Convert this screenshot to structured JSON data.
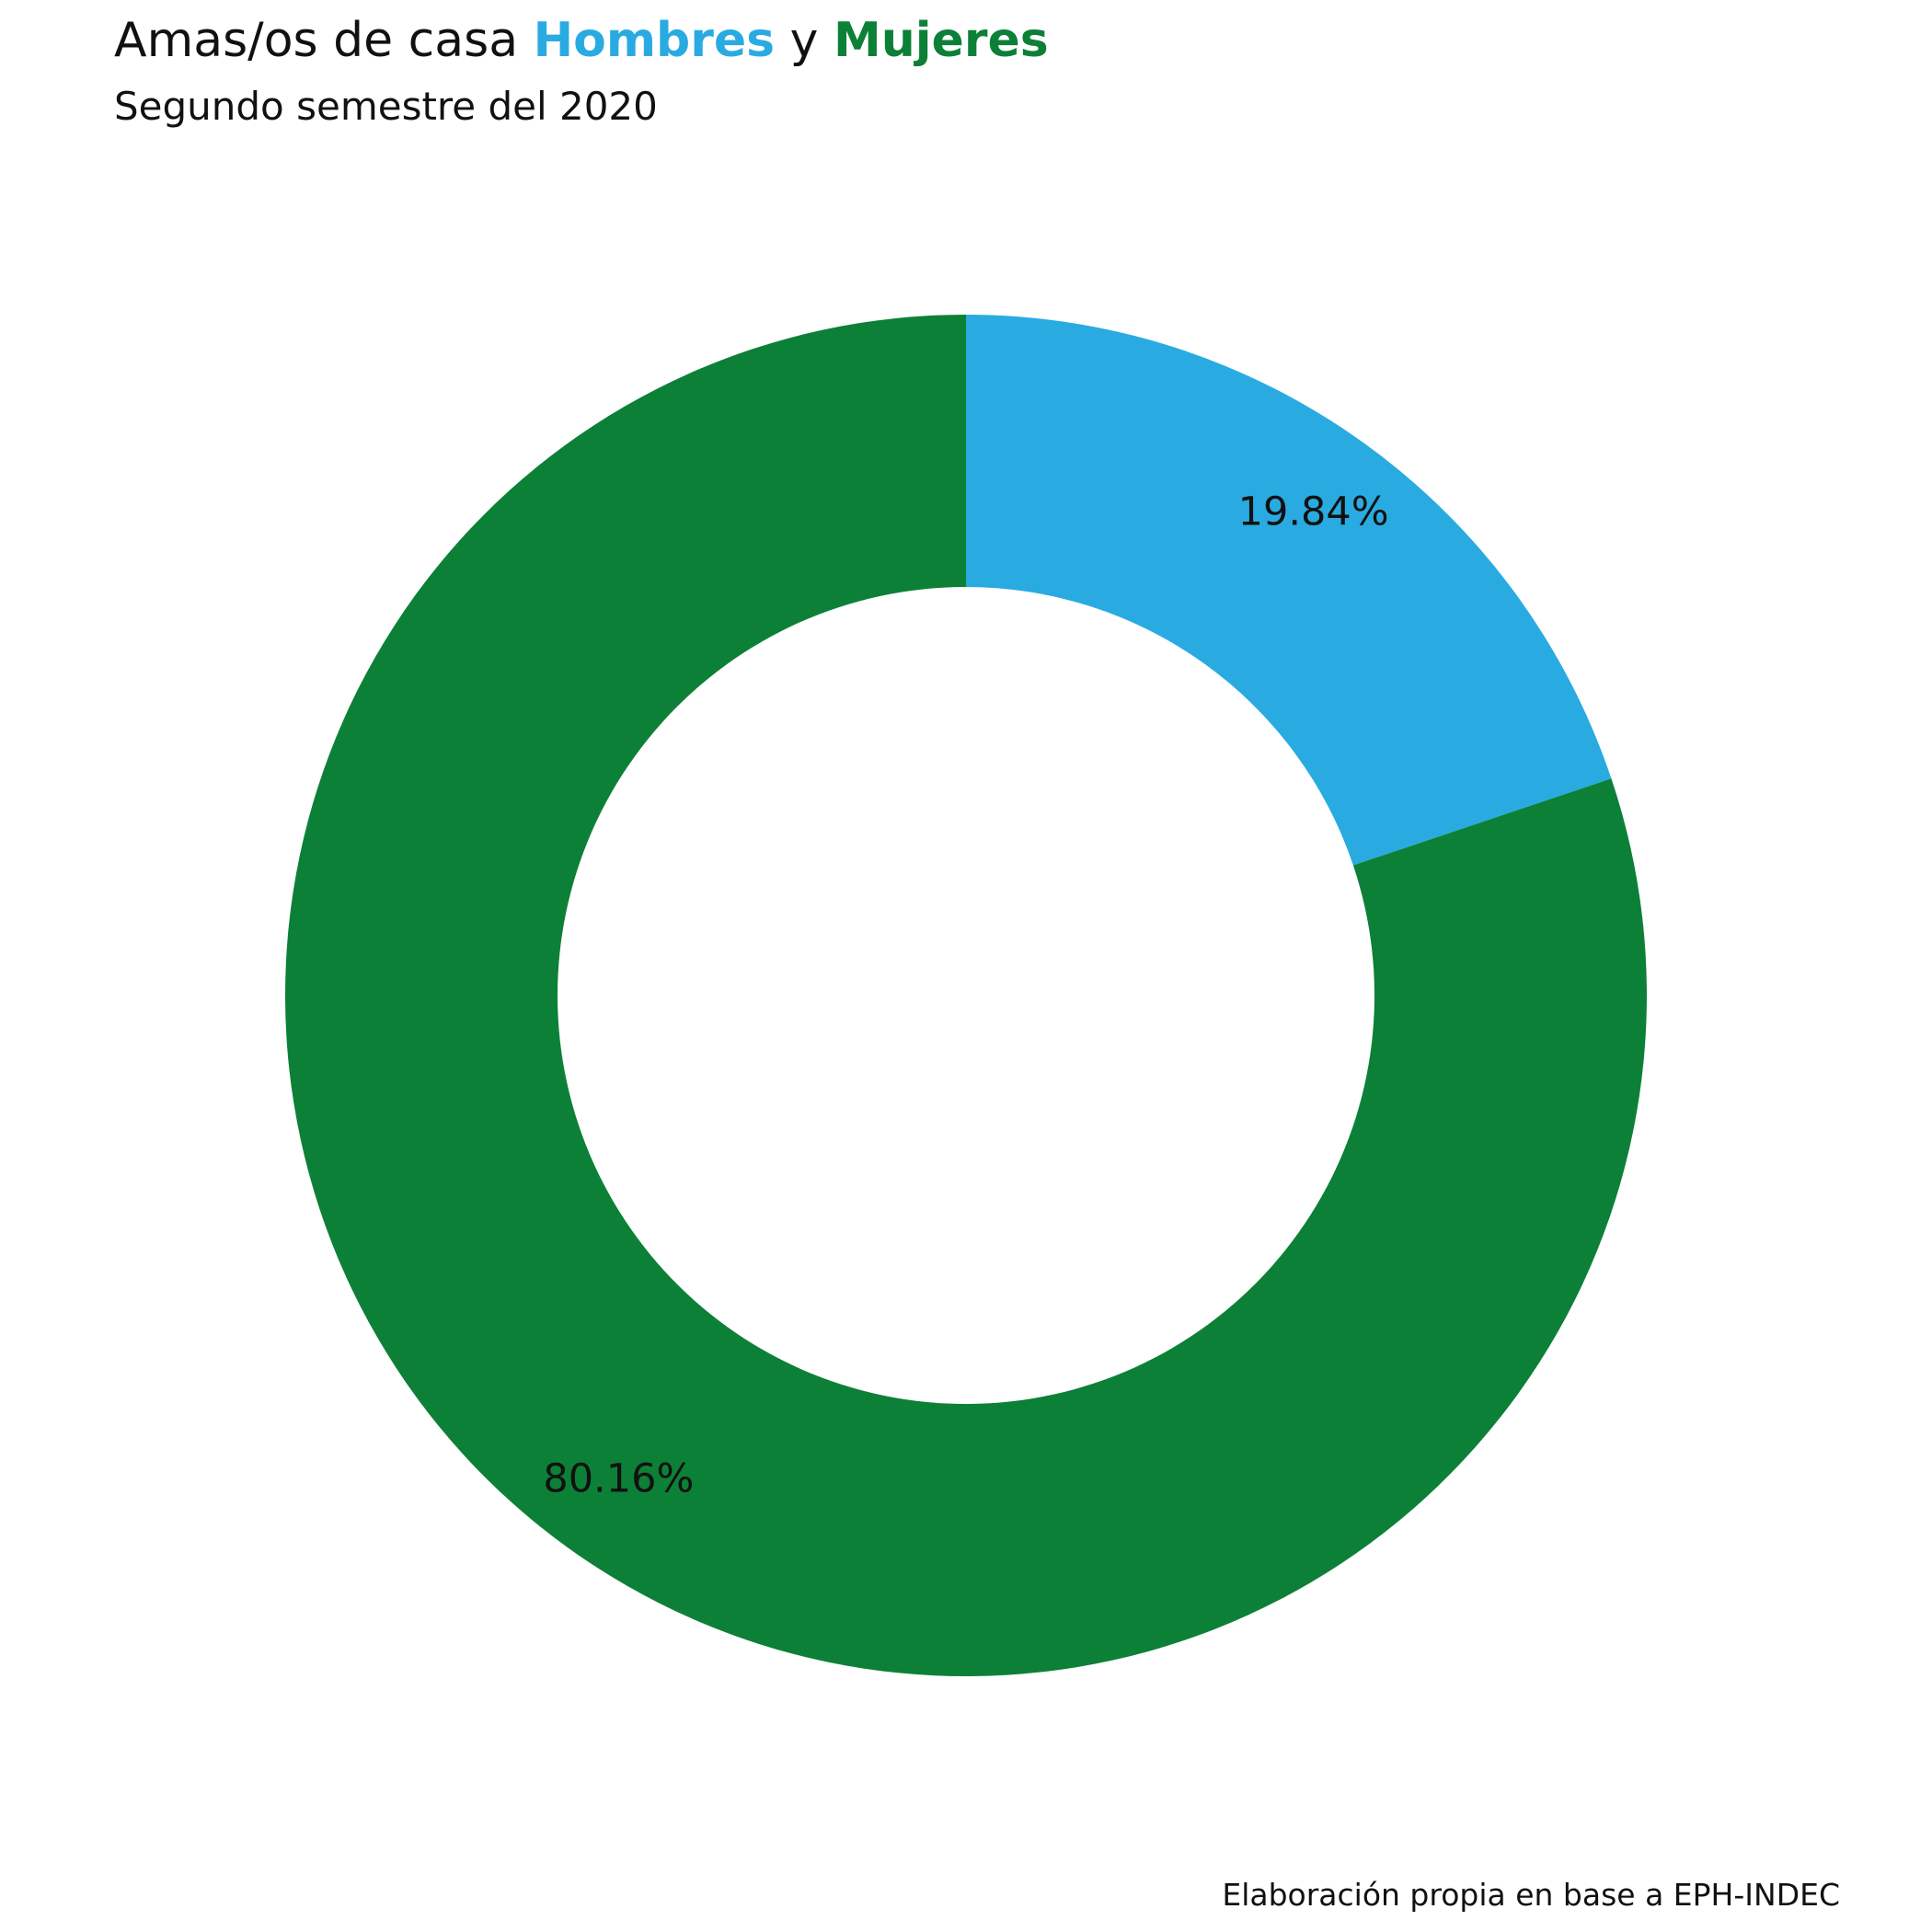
{
  "chart_data": {
    "type": "pie",
    "title": {
      "prefix": "Amas/os de casa ",
      "men": "Hombres",
      "connector": " y ",
      "women": "Mujeres"
    },
    "subtitle": "Segundo semestre del 2020",
    "caption": "Elaboración propia en base a EPH-INDEC",
    "categories": [
      "Hombres",
      "Mujeres"
    ],
    "values": [
      19.84,
      80.16
    ],
    "labels": [
      "19.84%",
      "80.16%"
    ],
    "colors": [
      "#29ABE2",
      "#0C8037"
    ]
  }
}
